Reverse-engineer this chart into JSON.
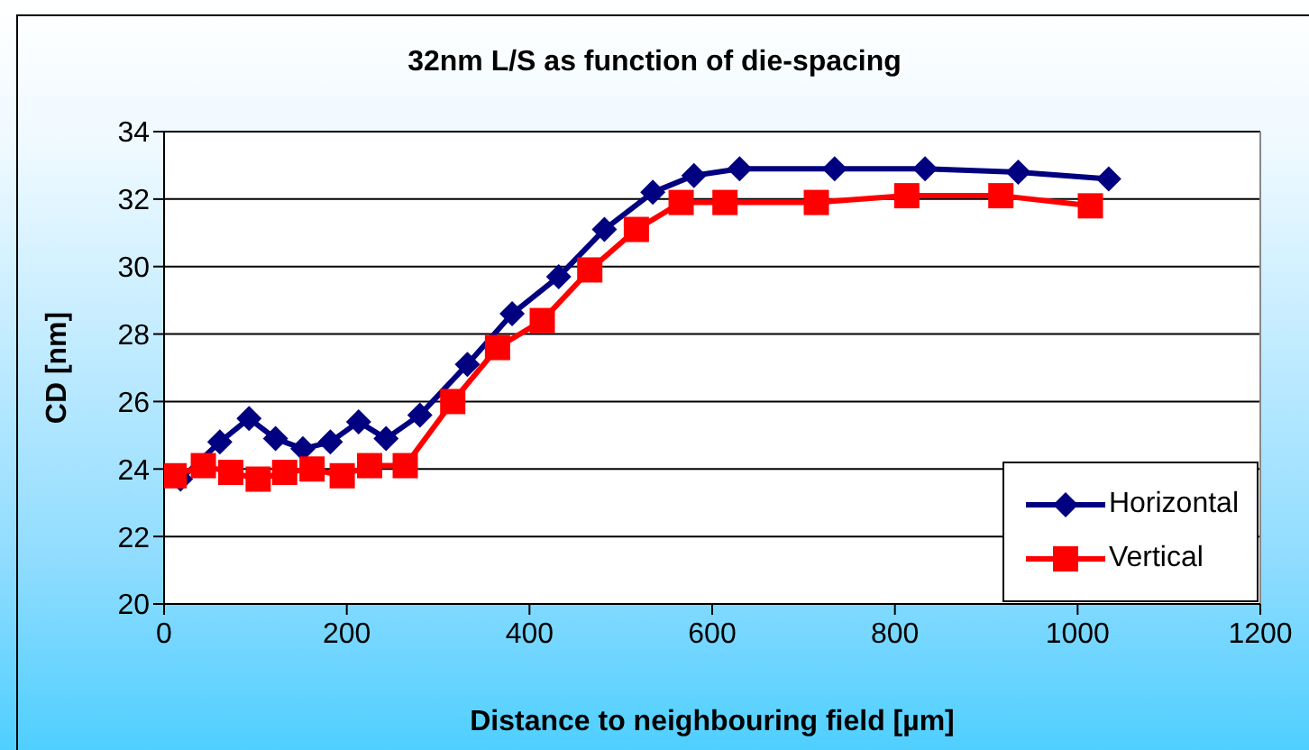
{
  "chart_data": {
    "type": "line",
    "title": "32nm L/S as function of die-spacing",
    "xlabel": "Distance to neighbouring field [µm]",
    "ylabel": "CD [nm]",
    "xlim": [
      0,
      1200
    ],
    "xticks": [
      0,
      200,
      400,
      600,
      800,
      1000,
      1200
    ],
    "ylim": [
      20,
      34
    ],
    "yticks": [
      20,
      22,
      24,
      26,
      28,
      30,
      32,
      34
    ],
    "grid": "y",
    "legend": "bottom right",
    "line_style": "solid",
    "series": [
      {
        "name": "Horizontal",
        "color": "#000080",
        "marker": "diamond",
        "x": [
          18,
          61,
          93,
          122,
          152,
          182,
          213,
          243,
          280,
          332,
          381,
          432,
          482,
          535,
          580,
          630,
          734,
          833,
          935,
          1034
        ],
        "values": [
          23.7,
          24.8,
          25.5,
          24.9,
          24.6,
          24.8,
          25.4,
          24.9,
          25.6,
          27.1,
          28.6,
          29.7,
          31.1,
          32.2,
          32.7,
          32.9,
          32.9,
          32.9,
          32.8,
          32.6
        ]
      },
      {
        "name": "Vertical",
        "color": "#ff0000",
        "marker": "square",
        "x": [
          11,
          43,
          73,
          103,
          132,
          162,
          195,
          225,
          264,
          316,
          365,
          414,
          466,
          517,
          566,
          614,
          714,
          813,
          916,
          1014
        ],
        "values": [
          23.8,
          24.1,
          23.9,
          23.7,
          23.9,
          24.0,
          23.8,
          24.1,
          24.1,
          26.0,
          27.6,
          28.4,
          29.9,
          31.1,
          31.9,
          31.9,
          31.9,
          32.1,
          32.1,
          31.8
        ]
      }
    ]
  }
}
